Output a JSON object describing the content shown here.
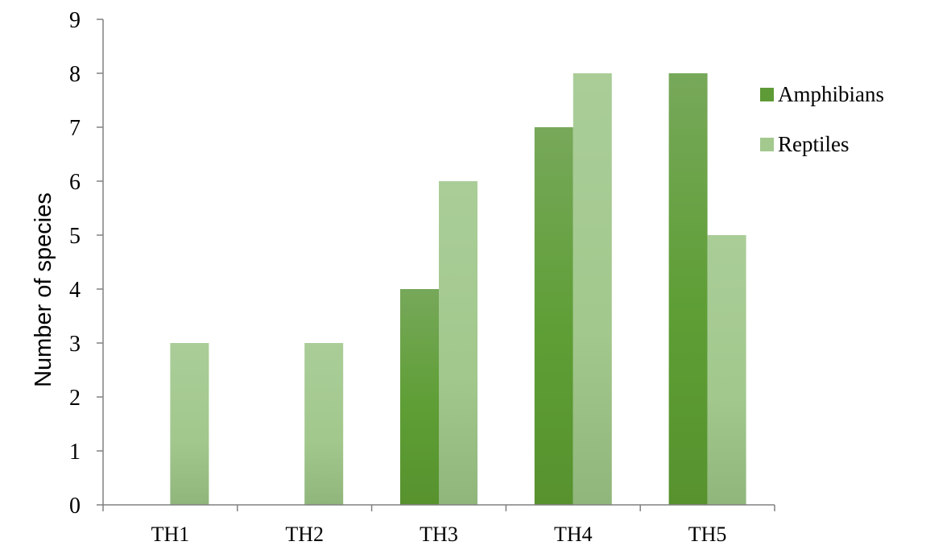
{
  "chart_data": {
    "type": "bar",
    "title": "",
    "xlabel": "",
    "ylabel": "Number of species",
    "categories": [
      "TH1",
      "TH2",
      "TH3",
      "TH4",
      "TH5"
    ],
    "series": [
      {
        "name": "Amphibians",
        "values": [
          0,
          0,
          4,
          7,
          8
        ],
        "color": "#5e9a36"
      },
      {
        "name": "Reptiles",
        "values": [
          3,
          3,
          6,
          8,
          5
        ],
        "color": "#a3c98f"
      }
    ],
    "ylim": [
      0,
      9
    ],
    "yticks": [
      0,
      1,
      2,
      3,
      4,
      5,
      6,
      7,
      8,
      9
    ],
    "grid": false,
    "legend": "right"
  }
}
